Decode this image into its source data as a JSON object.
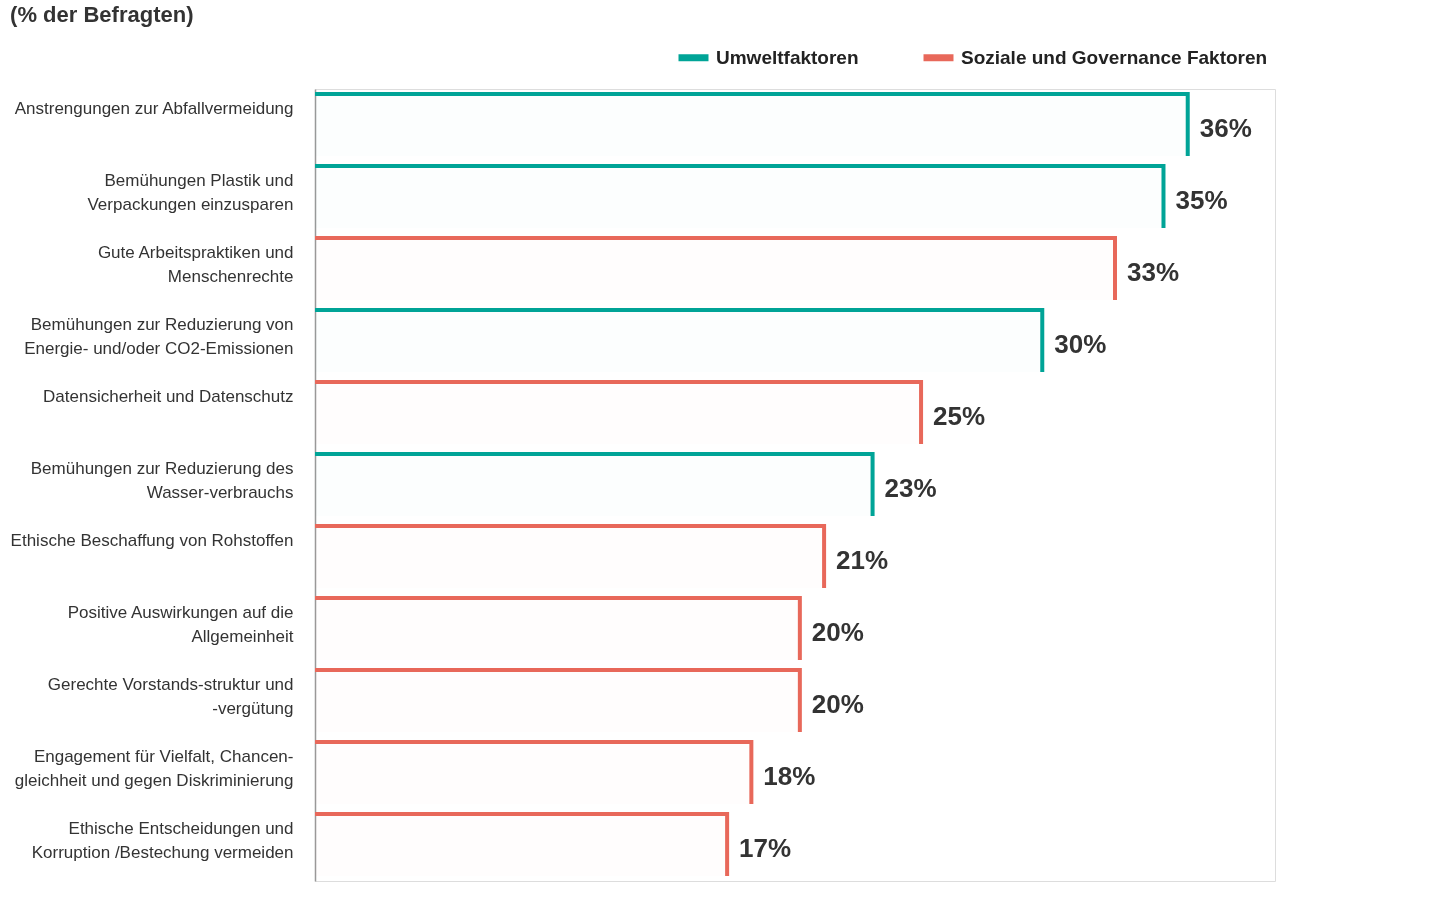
{
  "chart_data": {
    "type": "bar",
    "orientation": "horizontal",
    "title": "(% der Befragten)",
    "categories": [
      "Anstrengungen zur Abfallvermeidung",
      "Bemühungen Plastik und\nVerpackungen einzusparen",
      "Gute Arbeitspraktiken und\nMenschenrechte",
      "Bemühungen zur Reduzierung von\nEnergie- und/oder CO2-Emissionen",
      "Datensicherheit und Datenschutz",
      "Bemühungen zur Reduzierung des\nWasser-verbrauchs",
      "Ethische Beschaffung von Rohstoffen",
      "Positive Auswirkungen auf die\nAllgemeinheit",
      "Gerechte Vorstands-struktur und\n-vergütung",
      "Engagement  für Vielfalt, Chancen-\ngleichheit und gegen Diskriminierung",
      "Ethische Entscheidungen  und\nKorruption /Bestechung vermeiden"
    ],
    "series": [
      {
        "name": "Umweltfaktoren",
        "color": "#00a497",
        "values": [
          36,
          35,
          null,
          30,
          null,
          23,
          null,
          null,
          null,
          null,
          null
        ],
        "value_labels": [
          "36%",
          "35%",
          null,
          "30%",
          null,
          "23%",
          null,
          null,
          null,
          null,
          null
        ]
      },
      {
        "name": "Soziale und Governance Faktoren",
        "color": "#e8685a",
        "values": [
          null,
          null,
          33,
          null,
          25,
          null,
          21,
          20,
          20,
          18,
          17
        ],
        "value_labels": [
          null,
          null,
          "33%",
          null,
          "25%",
          null,
          "21%",
          "20%",
          "20%",
          "18%",
          "17%"
        ]
      }
    ],
    "legend": "top right"
  }
}
